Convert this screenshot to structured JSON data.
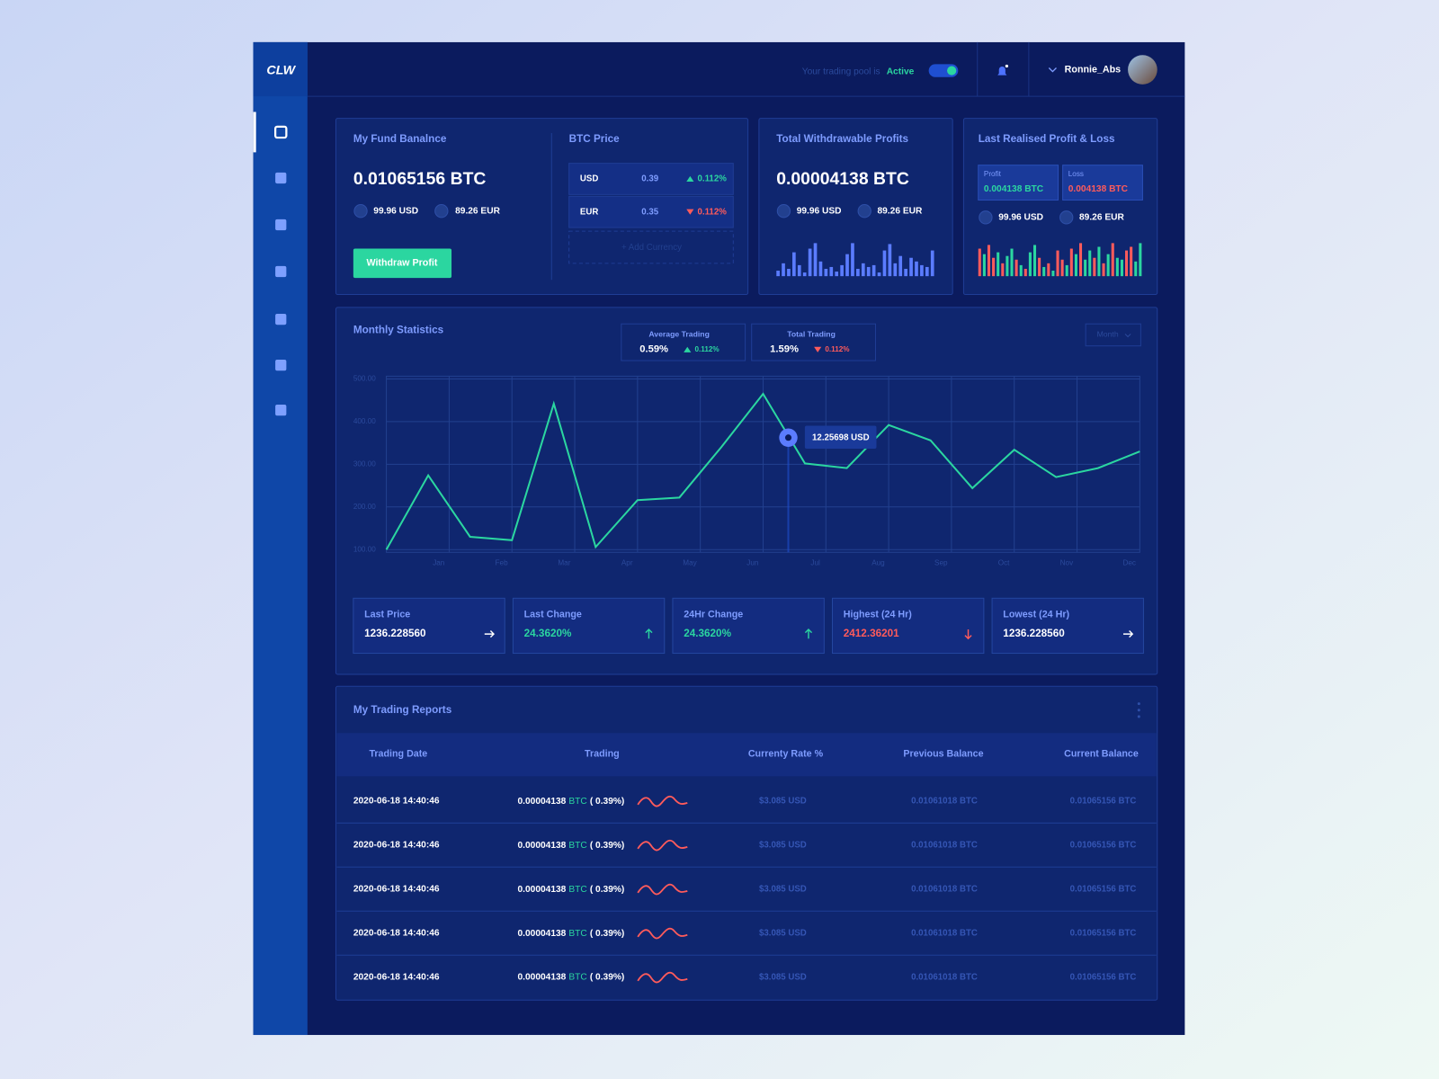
{
  "brand": "CLW",
  "header": {
    "pool_text": "Your trading pool is",
    "pool_status": "Active",
    "user": "Ronnie_Abs"
  },
  "fund": {
    "title": "My Fund Banalnce",
    "amount": "0.01065156 BTC",
    "usd": "99.96 USD",
    "eur": "89.26 EUR",
    "button": "Withdraw Profit"
  },
  "btc_price": {
    "title": "BTC Price",
    "rows": [
      {
        "currency": "USD",
        "price": "0.39",
        "change": "0.112%",
        "direction": "up"
      },
      {
        "currency": "EUR",
        "price": "0.35",
        "change": "0.112%",
        "direction": "down"
      }
    ],
    "add": "+ Add Currency"
  },
  "withdrawable": {
    "title": "Total Withdrawable Profits",
    "amount": "0.00004138 BTC",
    "usd": "99.96 USD",
    "eur": "89.26 EUR",
    "bars": [
      6,
      14,
      8,
      26,
      12,
      4,
      30,
      36,
      16,
      8,
      10,
      5,
      12,
      24,
      36,
      8,
      14,
      10,
      12,
      4,
      28,
      35,
      14,
      22,
      8,
      20,
      16,
      12,
      10,
      28
    ]
  },
  "pnl": {
    "title": "Last Realised Profit & Loss",
    "profit_label": "Profit",
    "profit": "0.004138 BTC",
    "loss_label": "Loss",
    "loss": "0.004138 BTC",
    "usd": "99.96 USD",
    "eur": "89.26 EUR",
    "bars": [
      30,
      24,
      34,
      20,
      26,
      14,
      22,
      30,
      18,
      12,
      8,
      26,
      34,
      20,
      10,
      14,
      6,
      28,
      18,
      12,
      30,
      24,
      36,
      18,
      28,
      20,
      32,
      14,
      24,
      36,
      20,
      18,
      28,
      32,
      16,
      36
    ],
    "bar_kinds": [
      "loss",
      "profit",
      "loss",
      "loss",
      "profit",
      "loss",
      "profit",
      "profit",
      "loss",
      "profit",
      "loss",
      "profit",
      "profit",
      "loss",
      "profit",
      "loss",
      "profit",
      "loss",
      "loss",
      "profit",
      "loss",
      "profit",
      "loss",
      "profit",
      "profit",
      "loss",
      "profit",
      "loss",
      "profit",
      "loss",
      "profit",
      "profit",
      "loss",
      "loss",
      "profit",
      "profit"
    ]
  },
  "monthly": {
    "average": {
      "label": "Average Trading",
      "value": "0.59%",
      "change": "0.112%",
      "direction": "up"
    },
    "total": {
      "label": "Total Trading",
      "value": "1.59%",
      "change": "0.112%",
      "direction": "down"
    },
    "select": "Month",
    "stats": [
      {
        "label": "Last Price",
        "value": "1236.228560",
        "trend": "right",
        "color": "#ffffff"
      },
      {
        "label": "Last Change",
        "value": "24.3620%",
        "trend": "up",
        "color": "#2bd6a0"
      },
      {
        "label": "24Hr Change",
        "value": "24.3620%",
        "trend": "up",
        "color": "#2bd6a0"
      },
      {
        "label": "Highest (24 Hr)",
        "value": "2412.36201",
        "trend": "down",
        "color": "#ff5b5b"
      },
      {
        "label": "Lowest (24 Hr)",
        "value": "1236.228560",
        "trend": "right",
        "color": "#ffffff"
      }
    ]
  },
  "chart_data": {
    "type": "line",
    "title": "Monthly Statistics",
    "x": [
      0,
      1,
      2,
      3,
      4,
      5,
      6,
      7,
      8,
      9,
      10,
      11,
      12,
      13,
      14,
      15,
      16,
      17,
      18
    ],
    "values": [
      100,
      274,
      130,
      122,
      442,
      106,
      216,
      222,
      340,
      465,
      302,
      291,
      392,
      356,
      244,
      334,
      270,
      291,
      330
    ],
    "xlim": [
      0,
      18
    ],
    "xticks": [
      {
        "value": 1.25,
        "label": "Jan"
      },
      {
        "value": 2.75,
        "label": "Feb"
      },
      {
        "value": 4.25,
        "label": "Mar"
      },
      {
        "value": 5.75,
        "label": "Apr"
      },
      {
        "value": 7.25,
        "label": "May"
      },
      {
        "value": 8.75,
        "label": "Jun"
      },
      {
        "value": 10.25,
        "label": "Jul"
      },
      {
        "value": 11.75,
        "label": "Aug"
      },
      {
        "value": 13.25,
        "label": "Sep"
      },
      {
        "value": 14.75,
        "label": "Oct"
      },
      {
        "value": 16.25,
        "label": "Nov"
      },
      {
        "value": 17.75,
        "label": "Dec"
      }
    ],
    "ylim": [
      100,
      500
    ],
    "yticks": [
      {
        "value": 100,
        "label": "100.00"
      },
      {
        "value": 200,
        "label": "200.00"
      },
      {
        "value": 300,
        "label": "300.00"
      },
      {
        "value": 400,
        "label": "400.00"
      },
      {
        "value": 500,
        "label": "500.00"
      }
    ],
    "color": "#2bd6a0",
    "grid": true,
    "tooltip": "12.25698 USD"
  },
  "reports": {
    "title": "My Trading Reports",
    "columns": [
      "Trading Date",
      "Trading",
      "Currenty Rate %",
      "Previous Balance",
      "Current Balance"
    ],
    "rows": [
      {
        "date": "2020-06-18 14:40:46",
        "amount": "0.00004138",
        "unit": "BTC",
        "pct": "( 0.39%)",
        "rate": "$3.085 USD",
        "previous": "0.01061018 BTC",
        "current": "0.01065156 BTC"
      },
      {
        "date": "2020-06-18 14:40:46",
        "amount": "0.00004138",
        "unit": "BTC",
        "pct": "( 0.39%)",
        "rate": "$3.085 USD",
        "previous": "0.01061018 BTC",
        "current": "0.01065156 BTC"
      },
      {
        "date": "2020-06-18 14:40:46",
        "amount": "0.00004138",
        "unit": "BTC",
        "pct": "( 0.39%)",
        "rate": "$3.085 USD",
        "previous": "0.01061018 BTC",
        "current": "0.01065156 BTC"
      },
      {
        "date": "2020-06-18 14:40:46",
        "amount": "0.00004138",
        "unit": "BTC",
        "pct": "( 0.39%)",
        "rate": "$3.085 USD",
        "previous": "0.01061018 BTC",
        "current": "0.01065156 BTC"
      },
      {
        "date": "2020-06-18 14:40:46",
        "amount": "0.00004138",
        "unit": "BTC",
        "pct": "( 0.39%)",
        "rate": "$3.085 USD",
        "previous": "0.01061018 BTC",
        "current": "0.01065156 BTC"
      }
    ]
  }
}
